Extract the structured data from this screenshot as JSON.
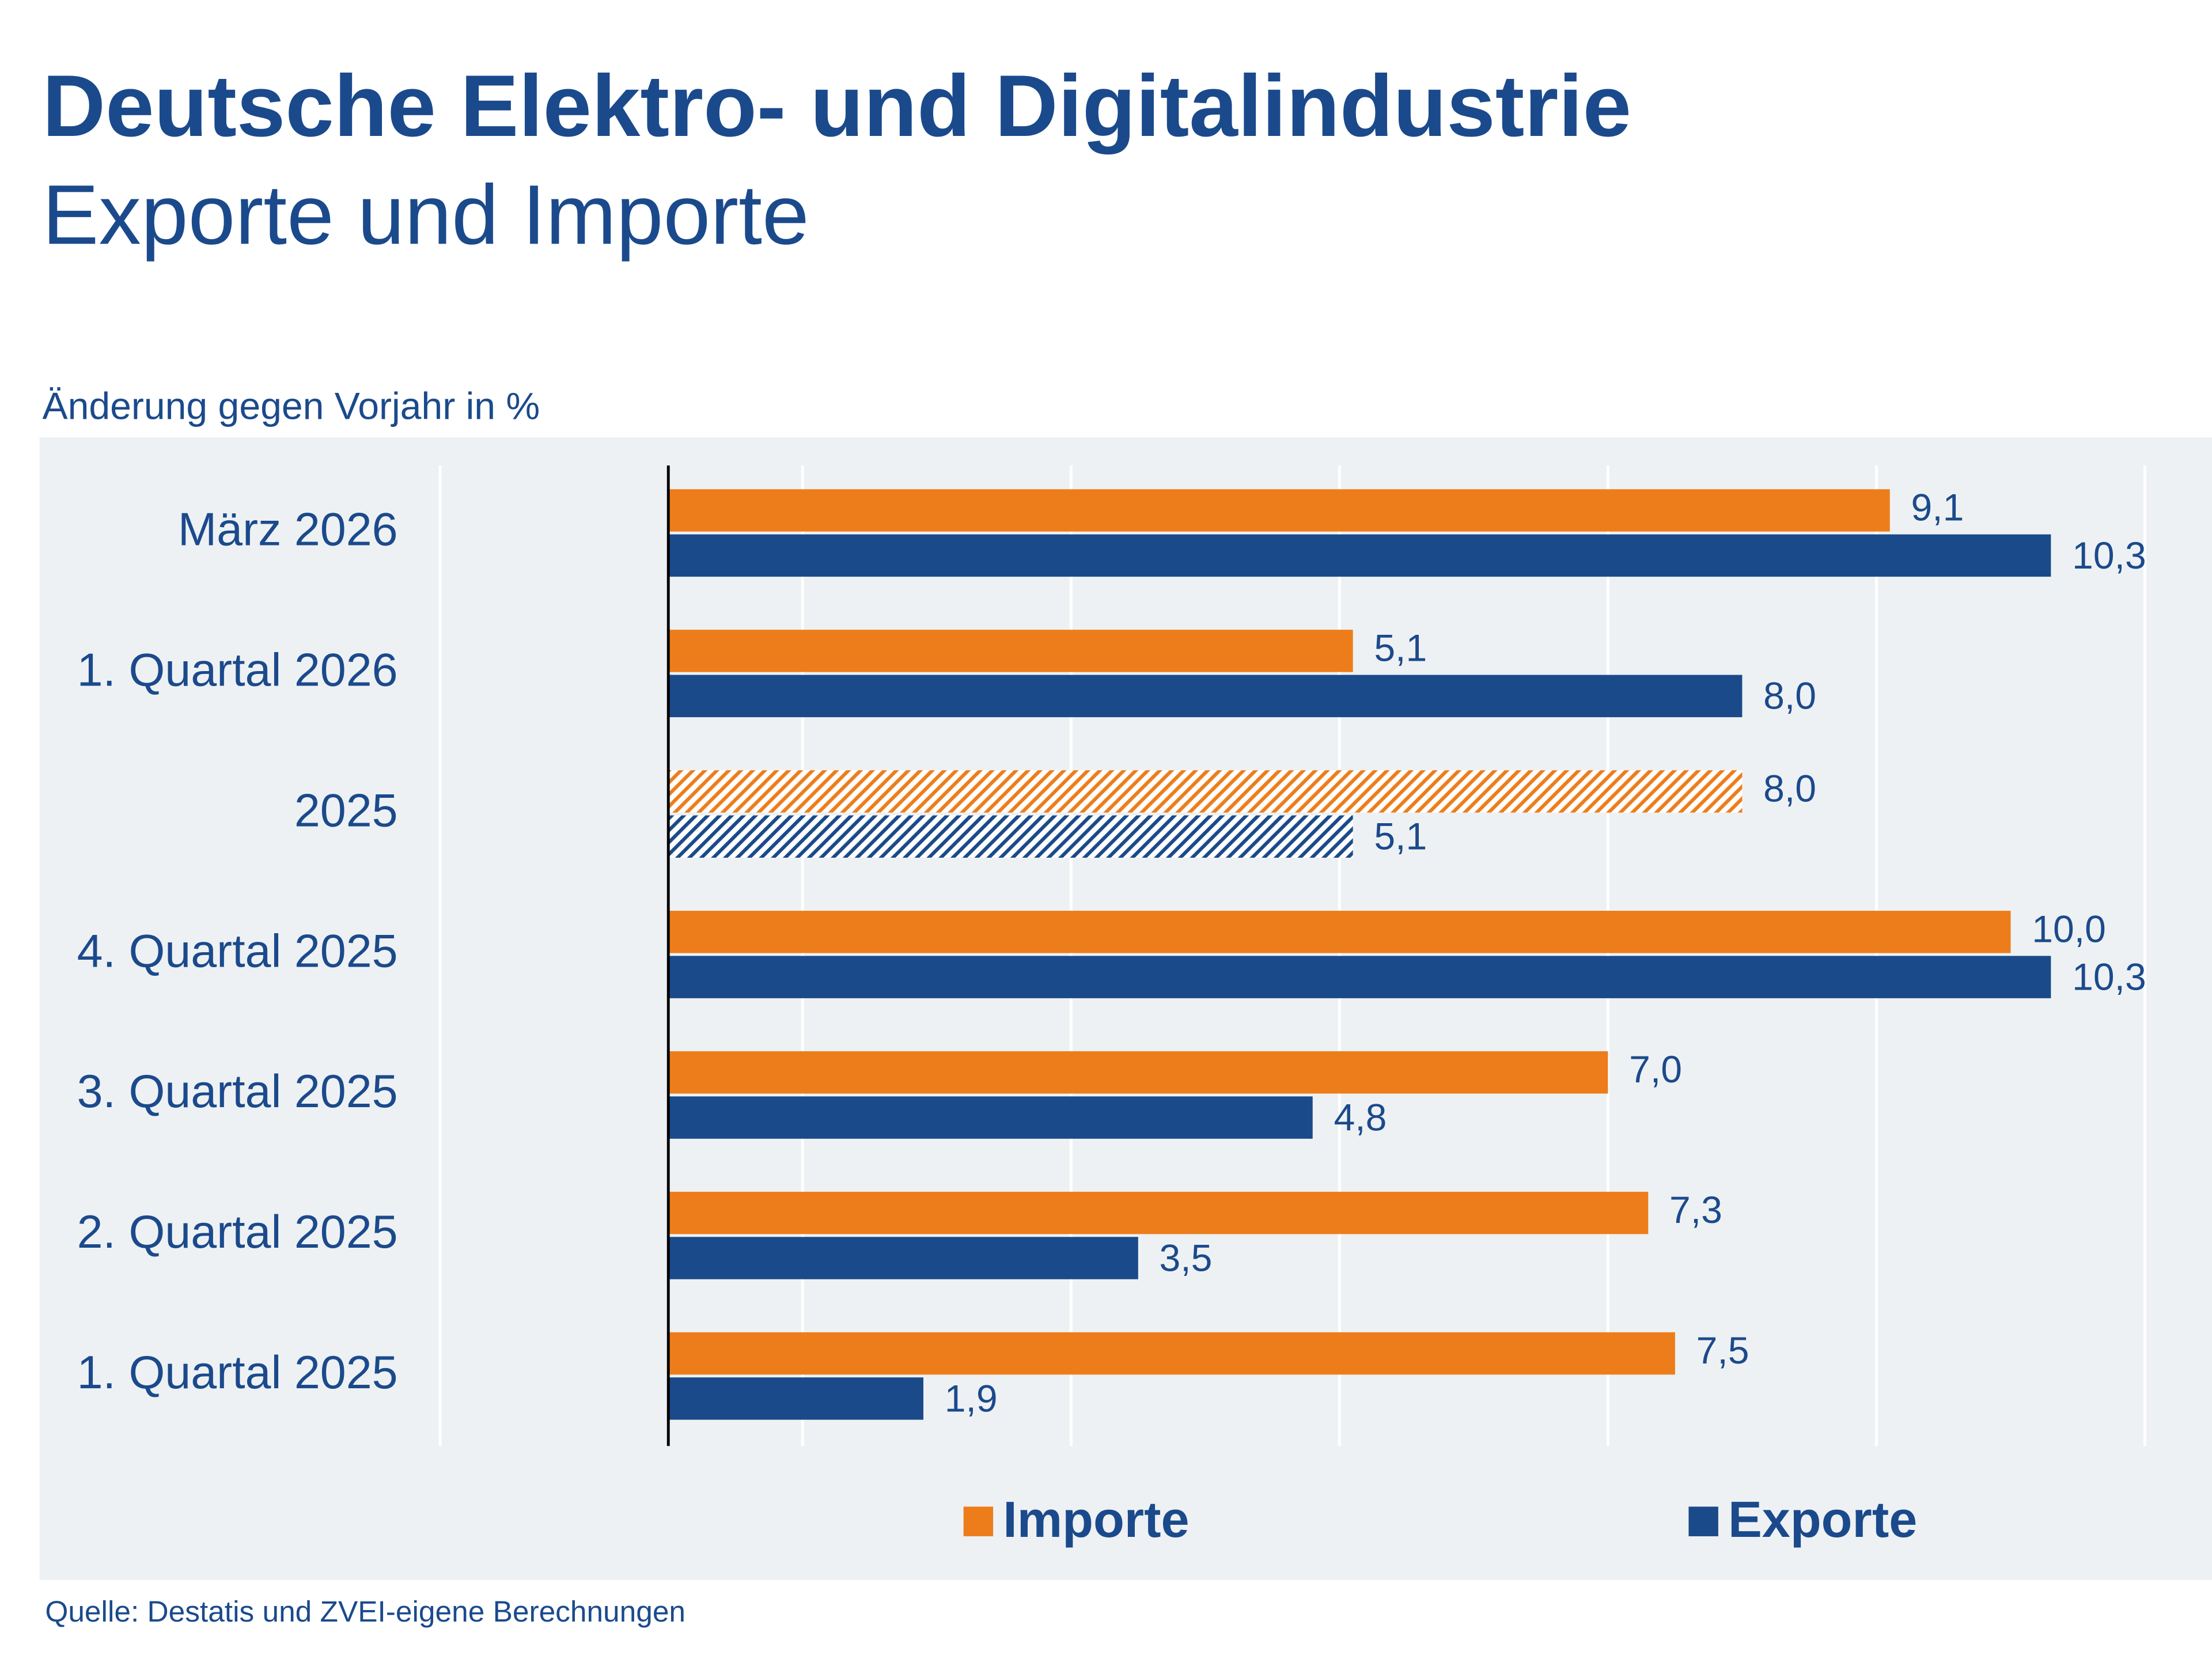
{
  "chart_data": {
    "type": "bar",
    "orientation": "horizontal",
    "title": "Deutsche Elektro- und Digitalindustrie",
    "subtitle": "Exporte und Importe",
    "axis_label": "Änderung gegen Vorjahr in %",
    "source": "Quelle: Destatis und ZVEI-eigene Berechnungen",
    "categories": [
      "März 2026",
      "1. Quartal 2026",
      "2025",
      "4. Quartal 2025",
      "3. Quartal 2025",
      "2. Quartal 2025",
      "1. Quartal 2025"
    ],
    "hatched": [
      false,
      false,
      true,
      false,
      false,
      false,
      false
    ],
    "series": [
      {
        "name": "Importe",
        "color": "#ed7d1a",
        "values": [
          9.1,
          5.1,
          8.0,
          10.0,
          7.0,
          7.3,
          7.5
        ],
        "value_labels": [
          "9,1",
          "5,1",
          "8,0",
          "10,0",
          "7,0",
          "7,3",
          "7,5"
        ]
      },
      {
        "name": "Exporte",
        "color": "#1a4a8a",
        "values": [
          10.3,
          8.0,
          5.1,
          10.3,
          4.8,
          3.5,
          1.9
        ],
        "value_labels": [
          "10,3",
          "8,0",
          "5,1",
          "10,3",
          "4,8",
          "3,5",
          "1,9"
        ]
      }
    ],
    "xlim": [
      -1.7,
      11.5
    ],
    "xgrid": [
      1,
      3,
      5,
      7,
      9,
      11
    ],
    "grid": true,
    "legend": "bottom"
  }
}
